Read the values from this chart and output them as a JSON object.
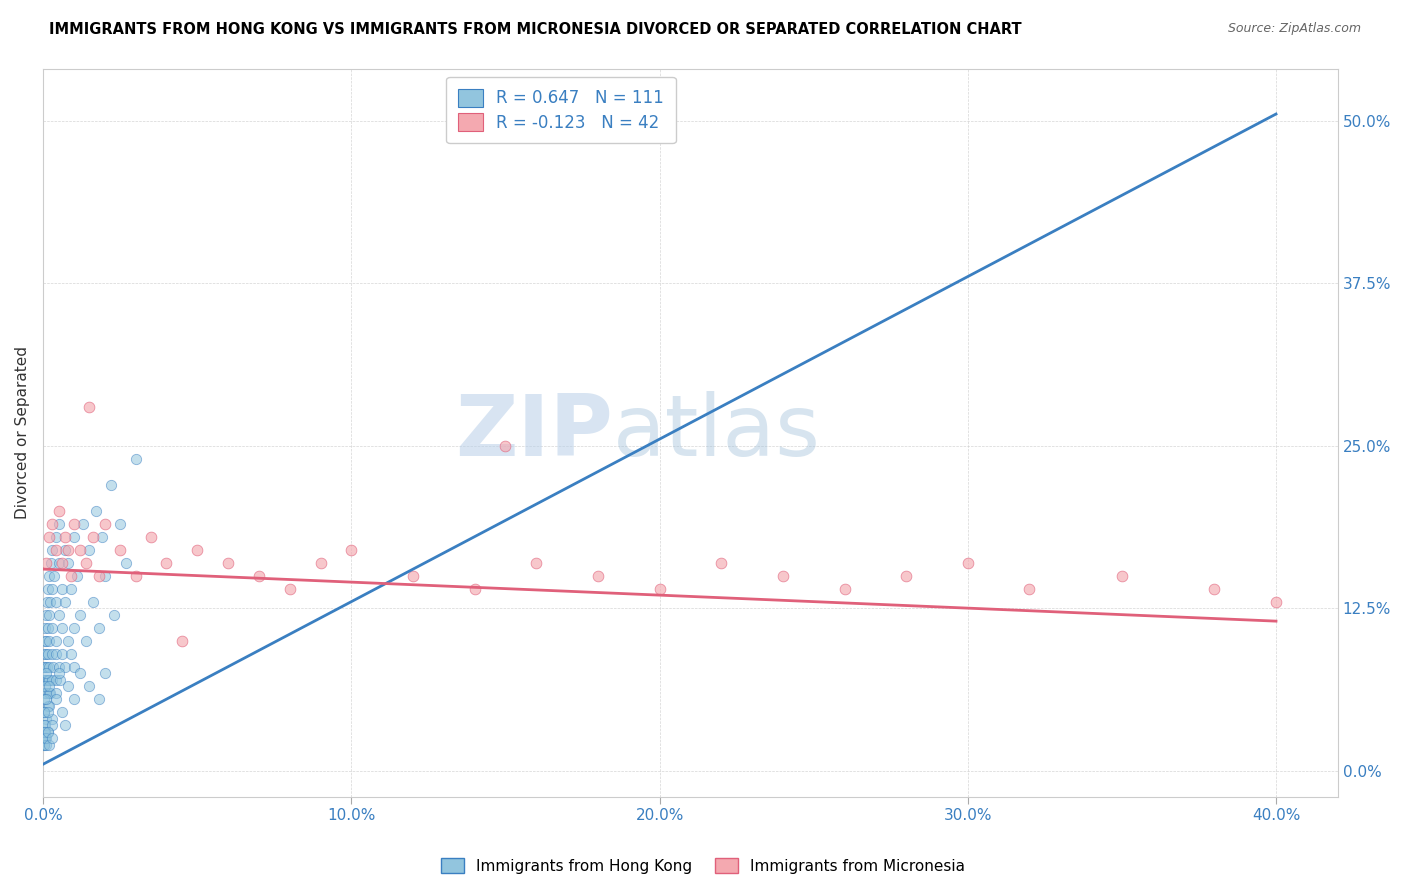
{
  "title": "IMMIGRANTS FROM HONG KONG VS IMMIGRANTS FROM MICRONESIA DIVORCED OR SEPARATED CORRELATION CHART",
  "source": "Source: ZipAtlas.com",
  "ylabel": "Divorced or Separated",
  "x_ticks": [
    "0.0%",
    "10.0%",
    "20.0%",
    "30.0%",
    "40.0%"
  ],
  "y_ticks_right": [
    "0.0%",
    "12.5%",
    "25.0%",
    "37.5%",
    "50.0%"
  ],
  "xlim": [
    0.0,
    0.42
  ],
  "ylim": [
    -0.02,
    0.54
  ],
  "legend_hk_R": "R = 0.647",
  "legend_hk_N": "N = 111",
  "legend_mc_R": "R = -0.123",
  "legend_mc_N": "N = 42",
  "legend_label_hk": "Immigrants from Hong Kong",
  "legend_label_mc": "Immigrants from Micronesia",
  "color_hk": "#92c5de",
  "color_mc": "#f4a9b0",
  "line_color_hk": "#3a7fc1",
  "line_color_mc": "#e0607a",
  "watermark_zip": "ZIP",
  "watermark_atlas": "atlas",
  "hk_line_x": [
    0.0,
    0.4
  ],
  "hk_line_y": [
    0.005,
    0.505
  ],
  "mc_line_x": [
    0.0,
    0.4
  ],
  "mc_line_y": [
    0.155,
    0.115
  ],
  "hk_scatter_x": [
    0.0002,
    0.0003,
    0.0004,
    0.0005,
    0.0005,
    0.0006,
    0.0007,
    0.0008,
    0.0009,
    0.001,
    0.001,
    0.001,
    0.0012,
    0.0013,
    0.0014,
    0.0015,
    0.0015,
    0.0016,
    0.0017,
    0.0018,
    0.002,
    0.002,
    0.002,
    0.002,
    0.002,
    0.0022,
    0.0023,
    0.0025,
    0.003,
    0.003,
    0.003,
    0.003,
    0.003,
    0.0032,
    0.0035,
    0.004,
    0.004,
    0.004,
    0.004,
    0.0042,
    0.005,
    0.005,
    0.005,
    0.005,
    0.0055,
    0.006,
    0.006,
    0.006,
    0.007,
    0.007,
    0.007,
    0.008,
    0.008,
    0.009,
    0.009,
    0.01,
    0.01,
    0.01,
    0.011,
    0.012,
    0.013,
    0.014,
    0.015,
    0.016,
    0.017,
    0.018,
    0.019,
    0.02,
    0.022,
    0.023,
    0.025,
    0.027,
    0.03,
    0.001,
    0.0015,
    0.002,
    0.003,
    0.004,
    0.0001,
    0.0002,
    0.0003,
    0.0004,
    0.0005,
    0.0006,
    0.0007,
    0.001,
    0.001,
    0.0015,
    0.002,
    0.003,
    0.004,
    0.005,
    0.006,
    0.007,
    0.008,
    0.01,
    0.012,
    0.015,
    0.018,
    0.02,
    0.0001,
    0.0002,
    0.0003,
    0.0004,
    0.0005,
    0.0006,
    0.0008,
    0.001,
    0.0015,
    0.002,
    0.003
  ],
  "hk_scatter_y": [
    0.08,
    0.09,
    0.07,
    0.1,
    0.06,
    0.08,
    0.11,
    0.09,
    0.07,
    0.12,
    0.06,
    0.1,
    0.08,
    0.13,
    0.07,
    0.11,
    0.05,
    0.09,
    0.14,
    0.06,
    0.12,
    0.07,
    0.15,
    0.08,
    0.1,
    0.13,
    0.06,
    0.16,
    0.09,
    0.14,
    0.07,
    0.11,
    0.17,
    0.08,
    0.15,
    0.1,
    0.18,
    0.07,
    0.13,
    0.09,
    0.16,
    0.08,
    0.12,
    0.19,
    0.07,
    0.14,
    0.09,
    0.11,
    0.17,
    0.08,
    0.13,
    0.1,
    0.16,
    0.09,
    0.14,
    0.11,
    0.18,
    0.08,
    0.15,
    0.12,
    0.19,
    0.1,
    0.17,
    0.13,
    0.2,
    0.11,
    0.18,
    0.15,
    0.22,
    0.12,
    0.19,
    0.16,
    0.24,
    0.04,
    0.03,
    0.05,
    0.04,
    0.06,
    0.045,
    0.035,
    0.055,
    0.045,
    0.035,
    0.065,
    0.025,
    0.055,
    0.075,
    0.045,
    0.065,
    0.035,
    0.055,
    0.075,
    0.045,
    0.035,
    0.065,
    0.055,
    0.075,
    0.065,
    0.055,
    0.075,
    0.02,
    0.025,
    0.03,
    0.02,
    0.025,
    0.03,
    0.02,
    0.025,
    0.03,
    0.02,
    0.025
  ],
  "mc_scatter_x": [
    0.001,
    0.002,
    0.003,
    0.004,
    0.005,
    0.006,
    0.007,
    0.008,
    0.009,
    0.01,
    0.012,
    0.014,
    0.016,
    0.018,
    0.02,
    0.025,
    0.03,
    0.035,
    0.04,
    0.05,
    0.06,
    0.07,
    0.08,
    0.09,
    0.1,
    0.12,
    0.14,
    0.16,
    0.18,
    0.2,
    0.22,
    0.24,
    0.26,
    0.28,
    0.3,
    0.32,
    0.35,
    0.38,
    0.4,
    0.015,
    0.045,
    0.15
  ],
  "mc_scatter_y": [
    0.16,
    0.18,
    0.19,
    0.17,
    0.2,
    0.16,
    0.18,
    0.17,
    0.15,
    0.19,
    0.17,
    0.16,
    0.18,
    0.15,
    0.19,
    0.17,
    0.15,
    0.18,
    0.16,
    0.17,
    0.16,
    0.15,
    0.14,
    0.16,
    0.17,
    0.15,
    0.14,
    0.16,
    0.15,
    0.14,
    0.16,
    0.15,
    0.14,
    0.15,
    0.16,
    0.14,
    0.15,
    0.14,
    0.13,
    0.28,
    0.1,
    0.25
  ]
}
